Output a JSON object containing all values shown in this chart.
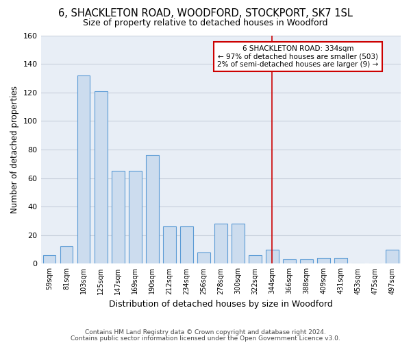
{
  "title1": "6, SHACKLETON ROAD, WOODFORD, STOCKPORT, SK7 1SL",
  "title2": "Size of property relative to detached houses in Woodford",
  "xlabel": "Distribution of detached houses by size in Woodford",
  "ylabel": "Number of detached properties",
  "categories": [
    "59sqm",
    "81sqm",
    "103sqm",
    "125sqm",
    "147sqm",
    "169sqm",
    "190sqm",
    "212sqm",
    "234sqm",
    "256sqm",
    "278sqm",
    "300sqm",
    "322sqm",
    "344sqm",
    "366sqm",
    "388sqm",
    "409sqm",
    "431sqm",
    "453sqm",
    "475sqm",
    "497sqm"
  ],
  "values": [
    6,
    12,
    132,
    121,
    65,
    65,
    76,
    26,
    26,
    8,
    28,
    28,
    6,
    10,
    3,
    3,
    4,
    4,
    0,
    0,
    10
  ],
  "bar_color": "#ccdcee",
  "bar_edge_color": "#5b9bd5",
  "grid_color": "#c8d0dc",
  "background_color": "#ffffff",
  "plot_bg_color": "#e8eef6",
  "vline_x_index": 13,
  "vline_color": "#cc0000",
  "annotation_text": "6 SHACKLETON ROAD: 334sqm\n← 97% of detached houses are smaller (503)\n2% of semi-detached houses are larger (9) →",
  "annotation_box_color": "white",
  "annotation_box_edge": "#cc0000",
  "footer1": "Contains HM Land Registry data © Crown copyright and database right 2024.",
  "footer2": "Contains public sector information licensed under the Open Government Licence v3.0.",
  "ylim": [
    0,
    160
  ],
  "yticks": [
    0,
    20,
    40,
    60,
    80,
    100,
    120,
    140,
    160
  ],
  "bar_width": 0.75
}
